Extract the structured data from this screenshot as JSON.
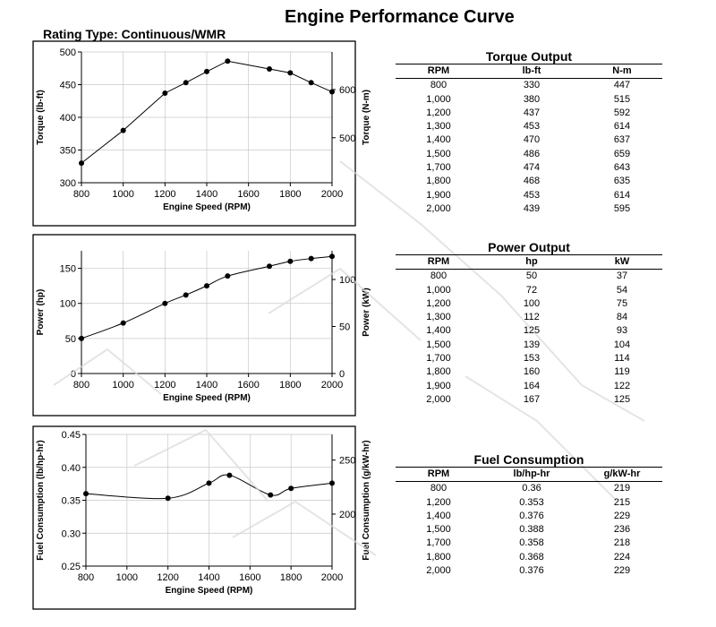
{
  "title": "Engine Performance Curve",
  "subtitle": "Rating Type: Continuous/WMR",
  "colors": {
    "line": "#000000",
    "grid": "#c8c8c8",
    "frame": "#000000"
  },
  "chart_data": [
    {
      "type": "line",
      "ylabel": "Torque (lb-ft)",
      "y2label": "Torque (N-m)",
      "xlabel": "Engine Speed (RPM)",
      "xlim": [
        800,
        2000
      ],
      "ylim": [
        300,
        500
      ],
      "x_ticks": [
        "800",
        "1000",
        "1200",
        "1400",
        "1600",
        "1800",
        "2000"
      ],
      "y_ticks": [
        "300",
        "350",
        "400",
        "450",
        "500"
      ],
      "y2_ticks": [
        {
          "label": "500",
          "value": 368.8
        },
        {
          "label": "600",
          "value": 442.5
        }
      ],
      "points": [
        {
          "x": 800,
          "y": 330
        },
        {
          "x": 1000,
          "y": 380
        },
        {
          "x": 1200,
          "y": 437
        },
        {
          "x": 1300,
          "y": 453
        },
        {
          "x": 1400,
          "y": 470
        },
        {
          "x": 1500,
          "y": 486
        },
        {
          "x": 1700,
          "y": 474
        },
        {
          "x": 1800,
          "y": 468
        },
        {
          "x": 1900,
          "y": 453
        },
        {
          "x": 2000,
          "y": 439
        }
      ],
      "grid": true
    },
    {
      "type": "line",
      "ylabel": "Power (hp)",
      "y2label": "Power (kW)",
      "xlabel": "Engine Speed (RPM)",
      "xlim": [
        800,
        2000
      ],
      "ylim": [
        0,
        175
      ],
      "x_ticks": [
        "800",
        "1000",
        "1200",
        "1400",
        "1600",
        "1800",
        "2000"
      ],
      "y_ticks": [
        "0",
        "50",
        "100",
        "150"
      ],
      "y2_ticks": [
        {
          "label": "0",
          "value": 0
        },
        {
          "label": "50",
          "value": 67.05
        },
        {
          "label": "100",
          "value": 134.1
        }
      ],
      "points": [
        {
          "x": 800,
          "y": 50
        },
        {
          "x": 1000,
          "y": 72
        },
        {
          "x": 1200,
          "y": 100
        },
        {
          "x": 1300,
          "y": 112
        },
        {
          "x": 1400,
          "y": 125
        },
        {
          "x": 1500,
          "y": 139
        },
        {
          "x": 1700,
          "y": 153
        },
        {
          "x": 1800,
          "y": 160
        },
        {
          "x": 1900,
          "y": 164
        },
        {
          "x": 2000,
          "y": 167
        }
      ],
      "grid": true
    },
    {
      "type": "line",
      "ylabel": "Fuel Consumption (lb/hp-hr)",
      "y2label": "Fuel Consumption (g/kW-hr)",
      "xlabel": "Engine Speed (RPM)",
      "xlim": [
        800,
        2000
      ],
      "ylim": [
        0.25,
        0.45
      ],
      "x_ticks": [
        "800",
        "1000",
        "1200",
        "1400",
        "1600",
        "1800",
        "2000"
      ],
      "y_ticks": [
        "0.25",
        "0.30",
        "0.35",
        "0.40",
        "0.45"
      ],
      "y2_ticks": [
        {
          "label": "200",
          "value": 0.329
        },
        {
          "label": "250",
          "value": 0.411
        }
      ],
      "points": [
        {
          "x": 800,
          "y": 0.36
        },
        {
          "x": 1200,
          "y": 0.353
        },
        {
          "x": 1400,
          "y": 0.376
        },
        {
          "x": 1500,
          "y": 0.388
        },
        {
          "x": 1700,
          "y": 0.358
        },
        {
          "x": 1800,
          "y": 0.368
        },
        {
          "x": 2000,
          "y": 0.376
        }
      ],
      "grid": true
    }
  ],
  "tables": [
    {
      "title": "Torque Output",
      "headers": [
        "RPM",
        "lb-ft",
        "N-m"
      ],
      "rows": [
        [
          "800",
          "330",
          "447"
        ],
        [
          "1,000",
          "380",
          "515"
        ],
        [
          "1,200",
          "437",
          "592"
        ],
        [
          "1,300",
          "453",
          "614"
        ],
        [
          "1,400",
          "470",
          "637"
        ],
        [
          "1,500",
          "486",
          "659"
        ],
        [
          "1,700",
          "474",
          "643"
        ],
        [
          "1,800",
          "468",
          "635"
        ],
        [
          "1,900",
          "453",
          "614"
        ],
        [
          "2,000",
          "439",
          "595"
        ]
      ]
    },
    {
      "title": "Power Output",
      "headers": [
        "RPM",
        "hp",
        "kW"
      ],
      "rows": [
        [
          "800",
          "50",
          "37"
        ],
        [
          "1,000",
          "72",
          "54"
        ],
        [
          "1,200",
          "100",
          "75"
        ],
        [
          "1,300",
          "112",
          "84"
        ],
        [
          "1,400",
          "125",
          "93"
        ],
        [
          "1,500",
          "139",
          "104"
        ],
        [
          "1,700",
          "153",
          "114"
        ],
        [
          "1,800",
          "160",
          "119"
        ],
        [
          "1,900",
          "164",
          "122"
        ],
        [
          "2,000",
          "167",
          "125"
        ]
      ]
    },
    {
      "title": "Fuel Consumption",
      "headers": [
        "RPM",
        "lb/hp-hr",
        "g/kW-hr"
      ],
      "rows": [
        [
          "800",
          "0.36",
          "219"
        ],
        [
          "1,200",
          "0.353",
          "215"
        ],
        [
          "1,400",
          "0.376",
          "229"
        ],
        [
          "1,500",
          "0.388",
          "236"
        ],
        [
          "1,700",
          "0.358",
          "218"
        ],
        [
          "1,800",
          "0.368",
          "224"
        ],
        [
          "2,000",
          "0.376",
          "229"
        ]
      ]
    }
  ]
}
